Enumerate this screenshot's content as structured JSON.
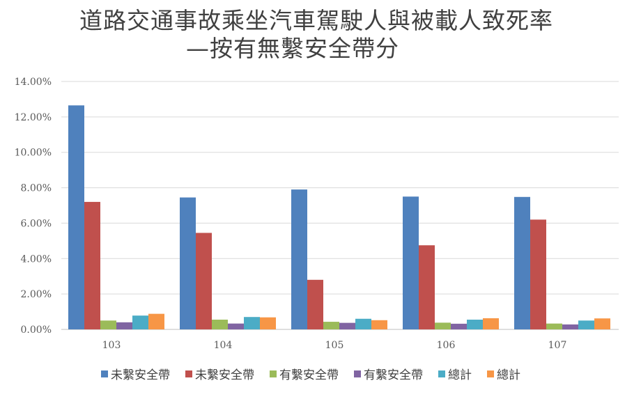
{
  "chart_data": {
    "type": "bar",
    "title": "道路交通事故乘坐汽車駕駛人與被載人致死率",
    "subtitle": "—按有無繫安全帶分",
    "categories": [
      "103",
      "104",
      "105",
      "106",
      "107"
    ],
    "y_ticks": [
      "0.00%",
      "2.00%",
      "4.00%",
      "6.00%",
      "8.00%",
      "10.00%",
      "12.00%",
      "14.00%"
    ],
    "ylim": [
      0,
      14
    ],
    "grid": true,
    "legend_position": "bottom",
    "series": [
      {
        "name": "未繫安全帶",
        "color": "#4F81BD",
        "values": [
          12.65,
          7.45,
          7.9,
          7.5,
          7.48
        ]
      },
      {
        "name": "未繫安全帶",
        "color": "#C0504D",
        "values": [
          7.2,
          5.45,
          2.8,
          4.75,
          6.2
        ]
      },
      {
        "name": "有繫安全帶",
        "color": "#9BBB59",
        "values": [
          0.5,
          0.55,
          0.43,
          0.38,
          0.33
        ]
      },
      {
        "name": "有繫安全帶",
        "color": "#8064A2",
        "values": [
          0.4,
          0.33,
          0.37,
          0.32,
          0.28
        ]
      },
      {
        "name": "總計",
        "color": "#4BACC6",
        "values": [
          0.78,
          0.7,
          0.6,
          0.55,
          0.5
        ]
      },
      {
        "name": "總計",
        "color": "#F79646",
        "values": [
          0.88,
          0.68,
          0.52,
          0.63,
          0.62
        ]
      }
    ]
  }
}
